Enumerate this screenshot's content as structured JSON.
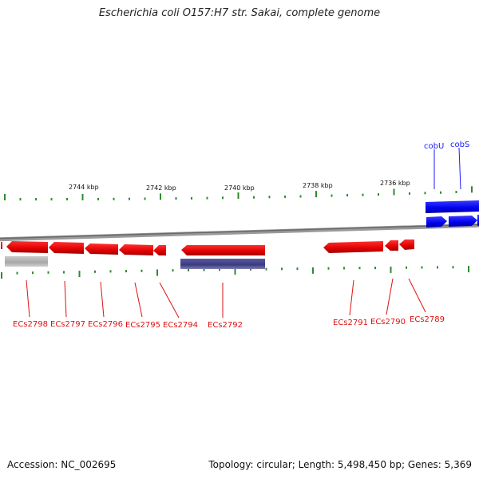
{
  "title": "Escherichia coli O157:H7 str. Sakai, complete genome",
  "accession_text": "Accession: NC_002695",
  "summary_text": "Topology: circular; Length: 5,498,450 bp; Genes: 5,369",
  "scale_labels": [
    "2744 kbp",
    "2742 kbp",
    "2740 kbp",
    "2738 kbp",
    "2736 kbp"
  ],
  "colors": {
    "forward_gene": "#1a1aff",
    "reverse_gene": "#ee1111",
    "rna_block": "#44448a",
    "pseudo_block": "#b0b0b0",
    "tick": "#2e8b2e",
    "backbone": "#8a8a8a"
  },
  "top_labels": [
    "cobU",
    "cobS"
  ],
  "bottom_labels": [
    "ECs2798",
    "ECs2797",
    "ECs2796",
    "ECs2795",
    "ECs2794",
    "ECs2792",
    "ECs2791",
    "ECs2790",
    "ECs2789"
  ]
}
